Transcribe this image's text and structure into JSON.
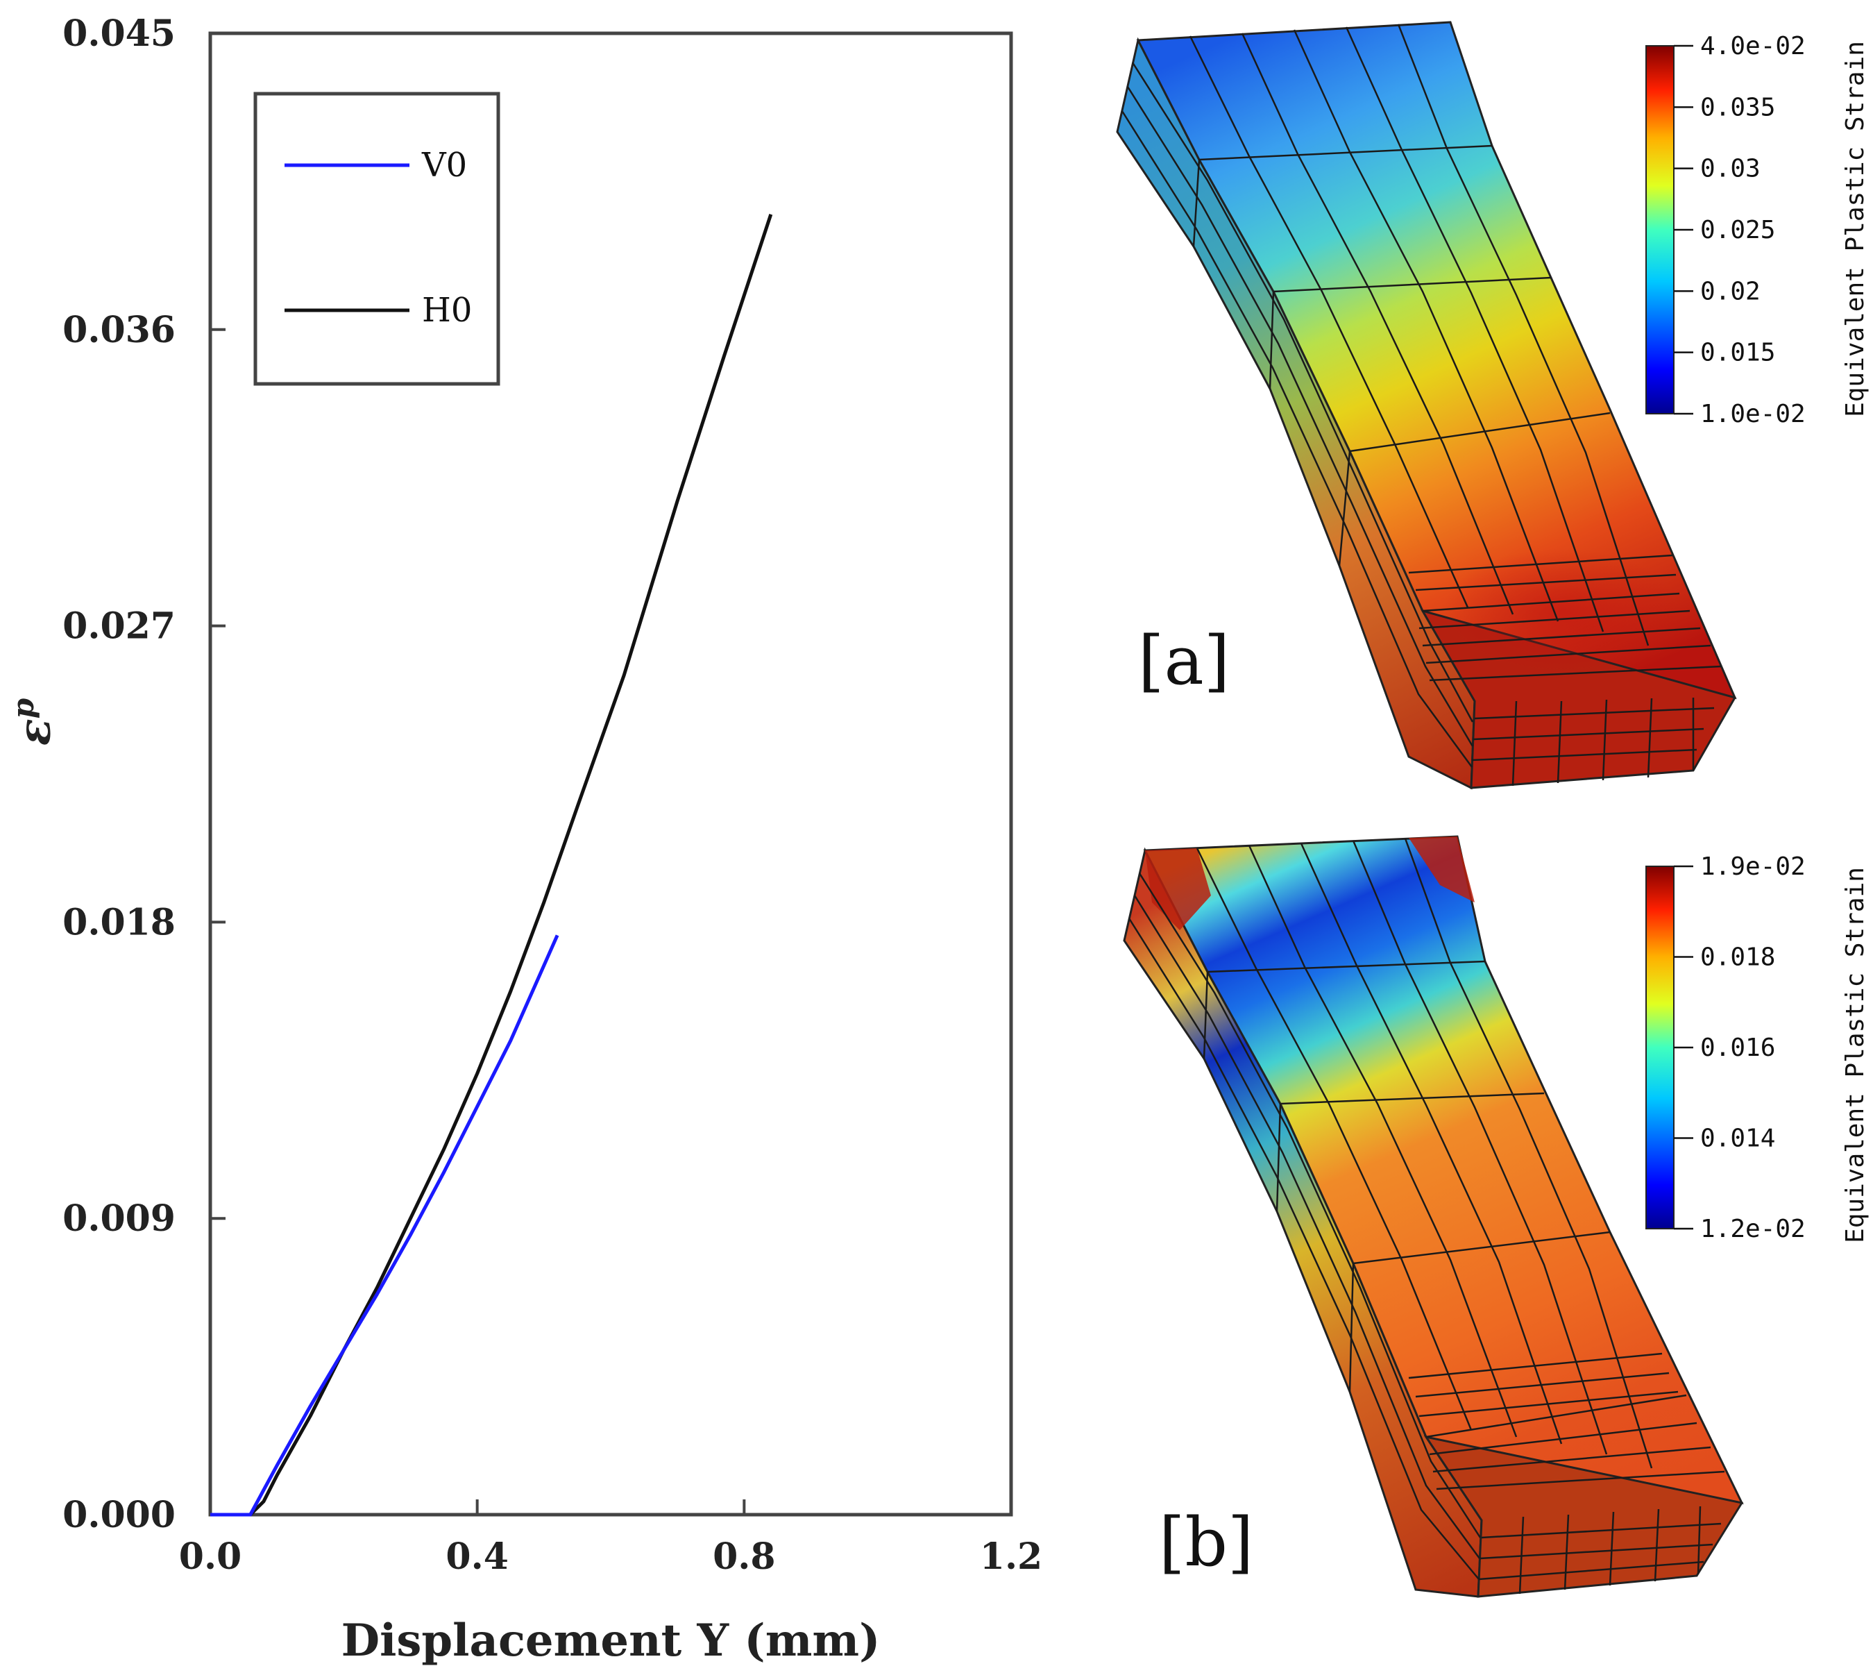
{
  "chart_data": {
    "type": "line",
    "xlabel": "Displacement Y (mm)",
    "ylabel": "εp",
    "xlim": [
      0.0,
      1.2
    ],
    "ylim": [
      0.0,
      0.045
    ],
    "xticks": [
      "0.0",
      "0.4",
      "0.8",
      "1.2"
    ],
    "yticks": [
      "0.000",
      "0.009",
      "0.018",
      "0.027",
      "0.036",
      "0.045"
    ],
    "xtick_values": [
      0.0,
      0.4,
      0.8,
      1.2
    ],
    "ytick_values": [
      0.0,
      0.009,
      0.018,
      0.027,
      0.036,
      0.045
    ],
    "grid": false,
    "legend_position": "top-left",
    "series": [
      {
        "name": "V0",
        "color": "#1a1aff",
        "x": [
          0.0,
          0.06,
          0.1,
          0.15,
          0.2,
          0.25,
          0.3,
          0.35,
          0.4,
          0.45,
          0.52
        ],
        "y": [
          0.0,
          0.0,
          0.0015,
          0.0033,
          0.005,
          0.0067,
          0.0085,
          0.0104,
          0.0124,
          0.0144,
          0.0176
        ]
      },
      {
        "name": "H0",
        "color": "#111111",
        "x": [
          0.0,
          0.06,
          0.08,
          0.1,
          0.15,
          0.2,
          0.25,
          0.3,
          0.35,
          0.4,
          0.45,
          0.5,
          0.55,
          0.62,
          0.7,
          0.77,
          0.84
        ],
        "y": [
          0.0,
          0.0,
          0.0004,
          0.0012,
          0.003,
          0.005,
          0.0069,
          0.009,
          0.0111,
          0.0134,
          0.0159,
          0.0186,
          0.0215,
          0.0255,
          0.0308,
          0.0352,
          0.0395
        ]
      }
    ]
  },
  "contour_panels": [
    {
      "label": "[a]",
      "colorbar_title": "Equivalent Plastic Strain",
      "colorbar_ticks": [
        "4.0e-02",
        "0.035",
        "0.03",
        "0.025",
        "0.02",
        "0.015",
        "1.0e-02"
      ]
    },
    {
      "label": "[b]",
      "colorbar_title": "Equivalent Plastic Strain",
      "colorbar_ticks": [
        "1.9e-02",
        "0.018",
        "0.016",
        "0.014",
        "1.2e-02"
      ]
    }
  ]
}
